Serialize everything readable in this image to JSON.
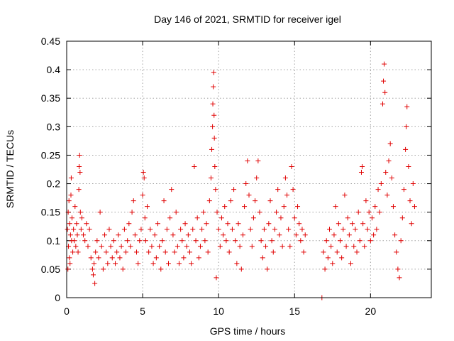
{
  "chart_data": {
    "type": "scatter",
    "title": "Day 146 of 2021, SRMTID for receiver igel",
    "xlabel": "GPS time / hours",
    "ylabel": "SRMTID / TECUs",
    "xlim": [
      0,
      24
    ],
    "ylim": [
      0,
      0.45
    ],
    "x_ticks": [
      0,
      5,
      10,
      15,
      20
    ],
    "y_ticks": [
      0,
      0.05,
      0.1,
      0.15,
      0.2,
      0.25,
      0.3,
      0.35,
      0.4,
      0.45
    ],
    "grid": true,
    "marker": "plus",
    "colors": {
      "series": "#e00000"
    },
    "series": [
      {
        "points": [
          [
            0.05,
            0.12
          ],
          [
            0.08,
            0.05
          ],
          [
            0.1,
            0.15
          ],
          [
            0.12,
            0.09
          ],
          [
            0.15,
            0.17
          ],
          [
            0.18,
            0.07
          ],
          [
            0.2,
            0.13
          ],
          [
            0.22,
            0.06
          ],
          [
            0.25,
            0.11
          ],
          [
            0.28,
            0.18
          ],
          [
            0.3,
            0.21
          ],
          [
            0.32,
            0.1
          ],
          [
            0.35,
            0.14
          ],
          [
            0.4,
            0.08
          ],
          [
            0.45,
            0.12
          ],
          [
            0.5,
            0.1
          ],
          [
            0.55,
            0.16
          ],
          [
            0.6,
            0.09
          ],
          [
            0.65,
            0.13
          ],
          [
            0.7,
            0.11
          ],
          [
            0.75,
            0.08
          ],
          [
            0.8,
            0.19
          ],
          [
            0.82,
            0.23
          ],
          [
            0.85,
            0.25
          ],
          [
            0.88,
            0.22
          ],
          [
            0.9,
            0.15
          ],
          [
            0.95,
            0.12
          ],
          [
            1.0,
            0.14
          ],
          [
            1.1,
            0.11
          ],
          [
            1.2,
            0.1
          ],
          [
            1.3,
            0.13
          ],
          [
            1.4,
            0.09
          ],
          [
            1.5,
            0.12
          ],
          [
            1.6,
            0.07
          ],
          [
            1.7,
            0.05
          ],
          [
            1.75,
            0.04
          ],
          [
            1.8,
            0.06
          ],
          [
            1.85,
            0.025
          ],
          [
            1.9,
            0.08
          ],
          [
            2.0,
            0.1
          ],
          [
            2.1,
            0.07
          ],
          [
            2.2,
            0.15
          ],
          [
            2.3,
            0.09
          ],
          [
            2.4,
            0.05
          ],
          [
            2.5,
            0.11
          ],
          [
            2.6,
            0.08
          ],
          [
            2.7,
            0.06
          ],
          [
            2.8,
            0.12
          ],
          [
            2.9,
            0.09
          ],
          [
            3.0,
            0.07
          ],
          [
            3.1,
            0.1
          ],
          [
            3.2,
            0.06
          ],
          [
            3.3,
            0.08
          ],
          [
            3.4,
            0.11
          ],
          [
            3.5,
            0.07
          ],
          [
            3.6,
            0.09
          ],
          [
            3.7,
            0.05
          ],
          [
            3.8,
            0.12
          ],
          [
            3.9,
            0.08
          ],
          [
            4.0,
            0.1
          ],
          [
            4.1,
            0.13
          ],
          [
            4.2,
            0.09
          ],
          [
            4.3,
            0.15
          ],
          [
            4.4,
            0.17
          ],
          [
            4.5,
            0.11
          ],
          [
            4.6,
            0.08
          ],
          [
            4.7,
            0.06
          ],
          [
            4.8,
            0.1
          ],
          [
            4.9,
            0.12
          ],
          [
            5.0,
            0.18
          ],
          [
            5.05,
            0.22
          ],
          [
            5.1,
            0.21
          ],
          [
            5.15,
            0.14
          ],
          [
            5.2,
            0.1
          ],
          [
            5.3,
            0.16
          ],
          [
            5.4,
            0.08
          ],
          [
            5.5,
            0.12
          ],
          [
            5.6,
            0.09
          ],
          [
            5.7,
            0.06
          ],
          [
            5.8,
            0.11
          ],
          [
            5.9,
            0.07
          ],
          [
            6.0,
            0.13
          ],
          [
            6.1,
            0.09
          ],
          [
            6.2,
            0.05
          ],
          [
            6.3,
            0.1
          ],
          [
            6.4,
            0.17
          ],
          [
            6.5,
            0.08
          ],
          [
            6.6,
            0.12
          ],
          [
            6.7,
            0.06
          ],
          [
            6.8,
            0.14
          ],
          [
            6.9,
            0.19
          ],
          [
            7.0,
            0.11
          ],
          [
            7.1,
            0.08
          ],
          [
            7.2,
            0.15
          ],
          [
            7.3,
            0.09
          ],
          [
            7.4,
            0.06
          ],
          [
            7.5,
            0.12
          ],
          [
            7.6,
            0.1
          ],
          [
            7.7,
            0.07
          ],
          [
            7.8,
            0.13
          ],
          [
            7.9,
            0.09
          ],
          [
            8.0,
            0.11
          ],
          [
            8.1,
            0.08
          ],
          [
            8.2,
            0.06
          ],
          [
            8.3,
            0.12
          ],
          [
            8.4,
            0.23
          ],
          [
            8.5,
            0.1
          ],
          [
            8.6,
            0.14
          ],
          [
            8.7,
            0.07
          ],
          [
            8.8,
            0.09
          ],
          [
            8.9,
            0.12
          ],
          [
            9.0,
            0.15
          ],
          [
            9.1,
            0.1
          ],
          [
            9.2,
            0.13
          ],
          [
            9.3,
            0.08
          ],
          [
            9.4,
            0.17
          ],
          [
            9.5,
            0.21
          ],
          [
            9.55,
            0.26
          ],
          [
            9.6,
            0.3
          ],
          [
            9.62,
            0.34
          ],
          [
            9.65,
            0.37
          ],
          [
            9.68,
            0.395
          ],
          [
            9.7,
            0.32
          ],
          [
            9.72,
            0.28
          ],
          [
            9.75,
            0.23
          ],
          [
            9.8,
            0.19
          ],
          [
            9.85,
            0.035
          ],
          [
            9.9,
            0.15
          ],
          [
            10.0,
            0.12
          ],
          [
            10.1,
            0.09
          ],
          [
            10.2,
            0.14
          ],
          [
            10.3,
            0.11
          ],
          [
            10.4,
            0.16
          ],
          [
            10.5,
            0.1
          ],
          [
            10.6,
            0.13
          ],
          [
            10.7,
            0.08
          ],
          [
            10.8,
            0.17
          ],
          [
            10.9,
            0.12
          ],
          [
            11.0,
            0.19
          ],
          [
            11.1,
            0.1
          ],
          [
            11.2,
            0.06
          ],
          [
            11.3,
            0.13
          ],
          [
            11.4,
            0.09
          ],
          [
            11.5,
            0.05
          ],
          [
            11.6,
            0.11
          ],
          [
            11.7,
            0.16
          ],
          [
            11.8,
            0.2
          ],
          [
            11.9,
            0.24
          ],
          [
            12.0,
            0.18
          ],
          [
            12.1,
            0.12
          ],
          [
            12.2,
            0.09
          ],
          [
            12.3,
            0.14
          ],
          [
            12.4,
            0.17
          ],
          [
            12.5,
            0.21
          ],
          [
            12.6,
            0.24
          ],
          [
            12.7,
            0.15
          ],
          [
            12.8,
            0.1
          ],
          [
            12.9,
            0.07
          ],
          [
            13.0,
            0.12
          ],
          [
            13.1,
            0.09
          ],
          [
            13.2,
            0.05
          ],
          [
            13.3,
            0.13
          ],
          [
            13.4,
            0.17
          ],
          [
            13.5,
            0.1
          ],
          [
            13.6,
            0.08
          ],
          [
            13.7,
            0.12
          ],
          [
            13.8,
            0.15
          ],
          [
            13.9,
            0.19
          ],
          [
            14.0,
            0.11
          ],
          [
            14.1,
            0.14
          ],
          [
            14.2,
            0.09
          ],
          [
            14.3,
            0.16
          ],
          [
            14.4,
            0.21
          ],
          [
            14.5,
            0.18
          ],
          [
            14.6,
            0.12
          ],
          [
            14.7,
            0.09
          ],
          [
            14.8,
            0.23
          ],
          [
            14.9,
            0.19
          ],
          [
            15.0,
            0.14
          ],
          [
            15.1,
            0.11
          ],
          [
            15.2,
            0.16
          ],
          [
            15.3,
            0.13
          ],
          [
            15.4,
            0.1
          ],
          [
            15.5,
            0.12
          ],
          [
            15.6,
            0.08
          ],
          [
            15.7,
            0.11
          ],
          [
            16.8,
            0.0
          ],
          [
            16.9,
            0.08
          ],
          [
            17.0,
            0.05
          ],
          [
            17.1,
            0.1
          ],
          [
            17.2,
            0.07
          ],
          [
            17.3,
            0.12
          ],
          [
            17.4,
            0.09
          ],
          [
            17.5,
            0.06
          ],
          [
            17.6,
            0.11
          ],
          [
            17.7,
            0.16
          ],
          [
            17.8,
            0.08
          ],
          [
            17.9,
            0.13
          ],
          [
            18.0,
            0.1
          ],
          [
            18.1,
            0.07
          ],
          [
            18.2,
            0.12
          ],
          [
            18.3,
            0.18
          ],
          [
            18.4,
            0.09
          ],
          [
            18.5,
            0.14
          ],
          [
            18.6,
            0.11
          ],
          [
            18.7,
            0.06
          ],
          [
            18.8,
            0.13
          ],
          [
            18.9,
            0.09
          ],
          [
            19.0,
            0.12
          ],
          [
            19.1,
            0.08
          ],
          [
            19.2,
            0.15
          ],
          [
            19.3,
            0.1
          ],
          [
            19.4,
            0.22
          ],
          [
            19.45,
            0.23
          ],
          [
            19.5,
            0.13
          ],
          [
            19.6,
            0.09
          ],
          [
            19.7,
            0.17
          ],
          [
            19.8,
            0.12
          ],
          [
            19.9,
            0.15
          ],
          [
            20.0,
            0.1
          ],
          [
            20.1,
            0.14
          ],
          [
            20.2,
            0.11
          ],
          [
            20.3,
            0.16
          ],
          [
            20.4,
            0.12
          ],
          [
            20.5,
            0.19
          ],
          [
            20.6,
            0.15
          ],
          [
            20.7,
            0.2
          ],
          [
            20.8,
            0.34
          ],
          [
            20.85,
            0.38
          ],
          [
            20.9,
            0.41
          ],
          [
            20.95,
            0.36
          ],
          [
            21.0,
            0.22
          ],
          [
            21.1,
            0.18
          ],
          [
            21.2,
            0.24
          ],
          [
            21.3,
            0.27
          ],
          [
            21.4,
            0.21
          ],
          [
            21.5,
            0.16
          ],
          [
            21.6,
            0.11
          ],
          [
            21.7,
            0.08
          ],
          [
            21.8,
            0.05
          ],
          [
            21.9,
            0.035
          ],
          [
            22.0,
            0.1
          ],
          [
            22.1,
            0.14
          ],
          [
            22.2,
            0.19
          ],
          [
            22.3,
            0.26
          ],
          [
            22.35,
            0.3
          ],
          [
            22.4,
            0.335
          ],
          [
            22.5,
            0.23
          ],
          [
            22.6,
            0.17
          ],
          [
            22.7,
            0.13
          ],
          [
            22.8,
            0.2
          ],
          [
            22.9,
            0.16
          ]
        ]
      }
    ]
  }
}
